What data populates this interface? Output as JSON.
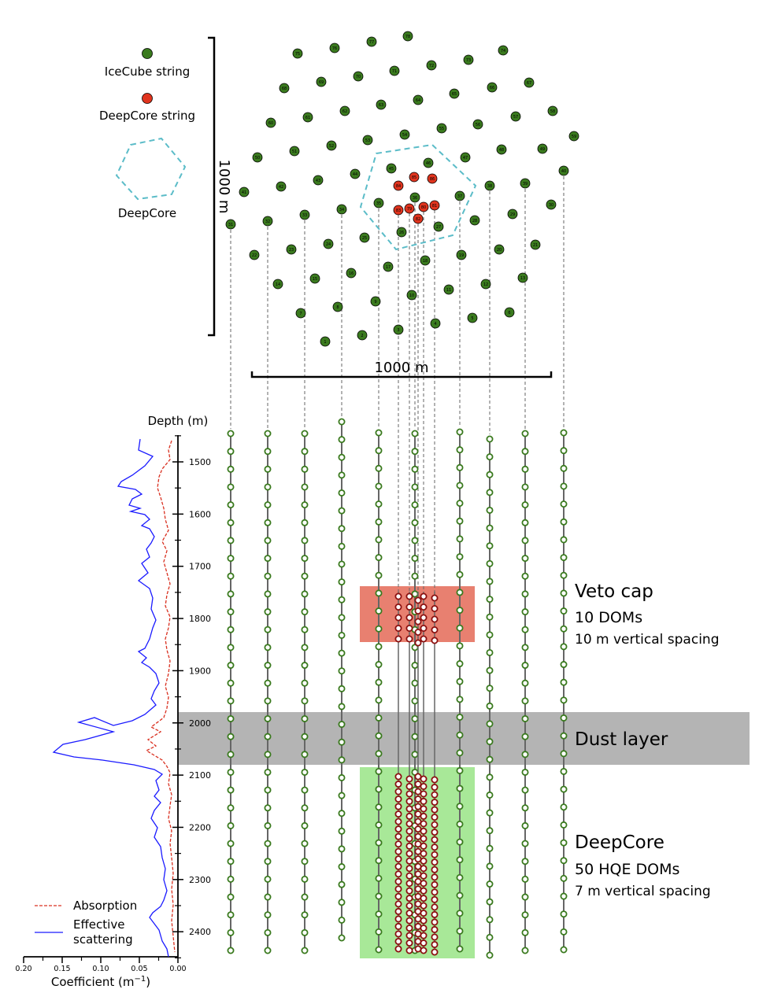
{
  "legend": {
    "icecube_label": "IceCube string",
    "deepcore_label": "DeepCore string",
    "hexagon_label": "DeepCore"
  },
  "scale": {
    "vertical_label": "1000 m",
    "horizontal_label": "1000 m"
  },
  "depth_axis": {
    "title": "Depth (m)",
    "ticks": [
      "1500",
      "1600",
      "1700",
      "1800",
      "1900",
      "2000",
      "2100",
      "2200",
      "2300",
      "2400"
    ]
  },
  "coef_axis": {
    "label": "Coefficient (m",
    "label_sup": "−1",
    "label_tail": ")",
    "ticks": [
      "0.20",
      "0.15",
      "0.10",
      "0.05",
      "0.00"
    ]
  },
  "coef_legend": {
    "absorption": "Absorption",
    "scattering_line1": "Effective",
    "scattering_line2": "scattering"
  },
  "regions": {
    "veto_title": "Veto cap",
    "veto_line2": "10 DOMs",
    "veto_line3": "10 m vertical spacing",
    "dust_title": "Dust layer",
    "deepcore_title": "DeepCore",
    "deepcore_line2": "50 HQE DOMs",
    "deepcore_line3": "7 m vertical spacing"
  },
  "colors": {
    "icecube_green": "#3a7a1e",
    "deepcore_red": "#e0341e",
    "hexagon": "#5bbcc8",
    "veto_fill": "#e88070",
    "dust_fill": "#b4b4b4",
    "deepcore_fill": "#a8e898",
    "scattering": "#1a1aff",
    "absorption": "#d93020"
  },
  "icecube_string_numbers": [
    "1",
    "2",
    "3",
    "4",
    "5",
    "6",
    "7",
    "8",
    "9",
    "10",
    "11",
    "12",
    "13",
    "14",
    "15",
    "16",
    "17",
    "18",
    "19",
    "20",
    "21",
    "22",
    "23",
    "24",
    "25",
    "26",
    "27",
    "28",
    "29",
    "30",
    "31",
    "32",
    "33",
    "34",
    "35",
    "36",
    "37",
    "38",
    "39",
    "40",
    "41",
    "42",
    "43",
    "44",
    "45",
    "46",
    "47",
    "48",
    "49",
    "50",
    "51",
    "52",
    "53",
    "54",
    "55",
    "56",
    "57",
    "58",
    "59",
    "60",
    "61",
    "62",
    "63",
    "64",
    "65",
    "66",
    "67",
    "68",
    "69",
    "70",
    "71",
    "72",
    "73",
    "74",
    "75",
    "76",
    "77",
    "78"
  ],
  "deepcore_string_numbers": [
    "79",
    "80",
    "81",
    "82",
    "83",
    "84",
    "85",
    "86"
  ]
}
